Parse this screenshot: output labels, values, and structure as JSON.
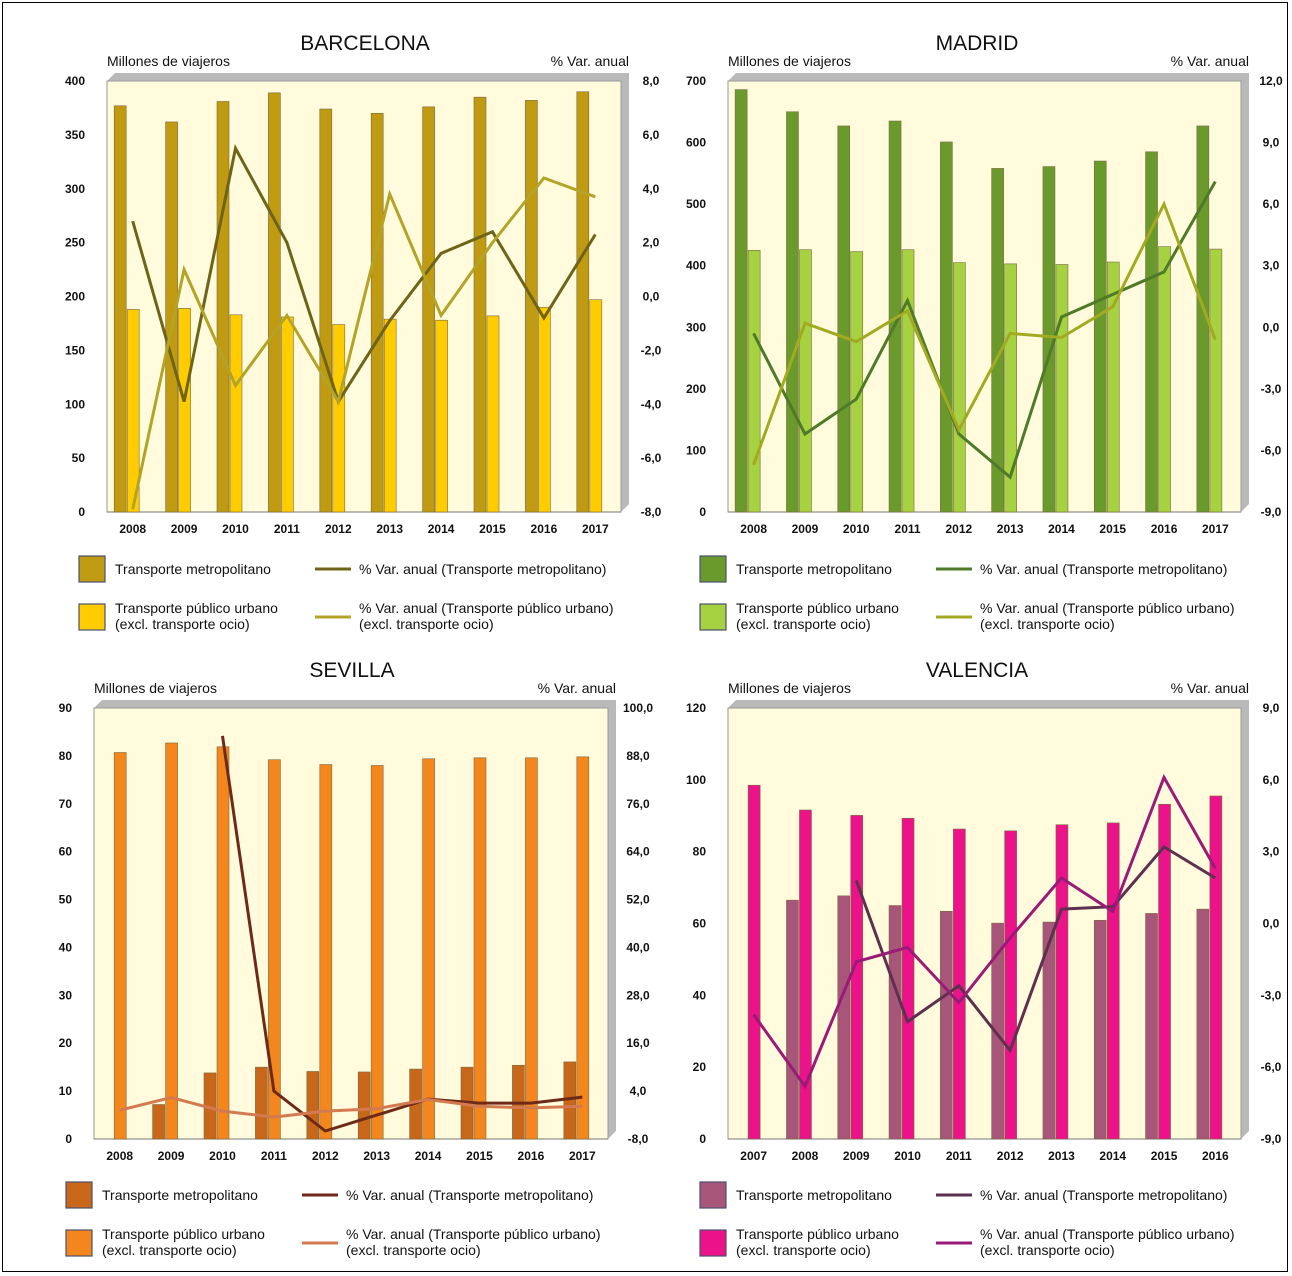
{
  "chart_data": [
    {
      "type": "bar",
      "title": "BARCELONA",
      "ylabel": "Millones de viajeros",
      "y2label": "% Var. anual",
      "categories": [
        "2008",
        "2009",
        "2010",
        "2011",
        "2012",
        "2013",
        "2014",
        "2015",
        "2016",
        "2017"
      ],
      "ylim": [
        0,
        400
      ],
      "yticks": [
        0,
        50,
        100,
        150,
        200,
        250,
        300,
        350,
        400
      ],
      "y2lim": [
        -8,
        8
      ],
      "y2ticks": [
        "-8,0",
        "-6,0",
        "-4,0",
        "-2,0",
        "0,0",
        "2,0",
        "4,0",
        "6,0",
        "8,0"
      ],
      "y2tickvals": [
        -8,
        -6,
        -4,
        -2,
        0,
        2,
        4,
        6,
        8
      ],
      "series": [
        {
          "name": "Transporte metropolitano",
          "kind": "bar",
          "axis": "left",
          "color": "#c09a10",
          "values": [
            377,
            362,
            381,
            389,
            374,
            370,
            376,
            385,
            382,
            390
          ]
        },
        {
          "name": "Transporte público urbano\n(excl. transporte ocio)",
          "kind": "bar",
          "axis": "left",
          "color": "#ffcc00",
          "values": [
            188,
            189,
            183,
            181,
            174,
            179,
            178,
            182,
            190,
            197
          ]
        },
        {
          "name": "% Var. anual (Transporte metropolitano)",
          "kind": "line",
          "axis": "right",
          "color": "#6e6418",
          "values": [
            2.8,
            -3.9,
            5.5,
            2.0,
            -3.9,
            -0.9,
            1.6,
            2.4,
            -0.8,
            2.3
          ]
        },
        {
          "name": "% Var. anual (Transporte público urbano)\n(excl. transporte ocio)",
          "kind": "line",
          "axis": "right",
          "color": "#b3a428",
          "values": [
            -7.9,
            1.0,
            -3.3,
            -0.7,
            -3.9,
            3.8,
            -0.7,
            2.0,
            4.4,
            3.7
          ]
        }
      ]
    },
    {
      "type": "bar",
      "title": "MADRID",
      "ylabel": "Millones de viajeros",
      "y2label": "% Var. anual",
      "categories": [
        "2008",
        "2009",
        "2010",
        "2011",
        "2012",
        "2013",
        "2014",
        "2015",
        "2016",
        "2017"
      ],
      "ylim": [
        0,
        700
      ],
      "yticks": [
        0,
        100,
        200,
        300,
        400,
        500,
        600,
        700
      ],
      "y2lim": [
        -9,
        12
      ],
      "y2ticks": [
        "-9,0",
        "-6,0",
        "-3,0",
        "0,0",
        "3,0",
        "6,0",
        "9,0",
        "12,0"
      ],
      "y2tickvals": [
        -9,
        -6,
        -3,
        0,
        3,
        6,
        9,
        12
      ],
      "series": [
        {
          "name": "Transporte metropolitano",
          "kind": "bar",
          "axis": "left",
          "color": "#6a9a2c",
          "values": [
            686,
            650,
            627,
            635,
            601,
            558,
            561,
            570,
            585,
            627
          ]
        },
        {
          "name": "Transporte público urbano\n(excl. transporte ocio)",
          "kind": "bar",
          "axis": "left",
          "color": "#a6d141",
          "values": [
            425,
            426,
            423,
            426,
            405,
            403,
            402,
            406,
            431,
            427
          ]
        },
        {
          "name": "% Var. anual (Transporte metropolitano)",
          "kind": "line",
          "axis": "right",
          "color": "#4e7a2a",
          "values": [
            -0.3,
            -5.2,
            -3.5,
            1.3,
            -5.2,
            -7.3,
            0.5,
            1.6,
            2.7,
            7.1
          ]
        },
        {
          "name": "% Var. anual (Transporte público urbano)\n(excl. transporte ocio)",
          "kind": "line",
          "axis": "right",
          "color": "#a3aa22",
          "values": [
            -6.7,
            0.2,
            -0.7,
            0.8,
            -5.0,
            -0.3,
            -0.5,
            1.0,
            6.0,
            -0.6
          ]
        }
      ]
    },
    {
      "type": "bar",
      "title": "SEVILLA",
      "ylabel": "Millones de viajeros",
      "y2label": "% Var. anual",
      "categories": [
        "2008",
        "2009",
        "2010",
        "2011",
        "2012",
        "2013",
        "2014",
        "2015",
        "2016",
        "2017"
      ],
      "ylim": [
        0,
        90
      ],
      "yticks": [
        0,
        10,
        20,
        30,
        40,
        50,
        60,
        70,
        80,
        90
      ],
      "y2lim": [
        -8,
        100
      ],
      "y2ticks": [
        "-8,0",
        "4,0",
        "16,0",
        "28,0",
        "40,0",
        "52,0",
        "64,0",
        "76,0",
        "88,0",
        "100,0"
      ],
      "y2tickvals": [
        -8,
        4,
        16,
        28,
        40,
        52,
        64,
        76,
        88,
        100
      ],
      "series": [
        {
          "name": "Transporte metropolitano",
          "kind": "bar",
          "axis": "left",
          "color": "#c8661a",
          "values": [
            null,
            7.2,
            13.8,
            15.0,
            14.1,
            14.0,
            14.6,
            15.0,
            15.4,
            16.1
          ]
        },
        {
          "name": "Transporte público urbano\n(excl. transporte ocio)",
          "kind": "bar",
          "axis": "left",
          "color": "#f4861e",
          "values": [
            80.7,
            82.7,
            81.9,
            79.2,
            78.2,
            78.0,
            79.4,
            79.6,
            79.6,
            79.8
          ]
        },
        {
          "name": "% Var. anual (Transporte metropolitano)",
          "kind": "line",
          "axis": "right",
          "color": "#6e2a18",
          "values": [
            null,
            null,
            93.0,
            4.0,
            -6.0,
            -2.0,
            2.0,
            1.0,
            1.0,
            2.5
          ]
        },
        {
          "name": "% Var. anual (Transporte público urbano)\n(excl. transporte ocio)",
          "kind": "line",
          "axis": "right",
          "color": "#d47a50",
          "values": [
            -0.8,
            2.4,
            -1.0,
            -2.5,
            -1.0,
            -0.4,
            1.9,
            0.2,
            -0.2,
            0.2
          ]
        }
      ]
    },
    {
      "type": "bar",
      "title": "VALENCIA",
      "ylabel": "Millones de viajeros",
      "y2label": "% Var. anual",
      "categories": [
        "2007",
        "2008",
        "2009",
        "2010",
        "2011",
        "2012",
        "2013",
        "2014",
        "2015",
        "2016"
      ],
      "ylim": [
        0,
        120
      ],
      "yticks": [
        0,
        20,
        40,
        60,
        80,
        100,
        120
      ],
      "y2lim": [
        -9,
        9
      ],
      "y2ticks": [
        "-9,0",
        "-6,0",
        "-3,0",
        "0,0",
        "3,0",
        "6,0",
        "9,0"
      ],
      "y2tickvals": [
        -9,
        -6,
        -3,
        0,
        3,
        6,
        9
      ],
      "series": [
        {
          "name": "Transporte metropolitano",
          "kind": "bar",
          "axis": "left",
          "color": "#a8557a",
          "values": [
            null,
            66.5,
            67.7,
            65.0,
            63.4,
            60.1,
            60.4,
            60.9,
            62.8,
            64.0
          ]
        },
        {
          "name": "Transporte público urbano\n(excl. transporte ocio)",
          "kind": "bar",
          "axis": "left",
          "color": "#ec138a",
          "values": [
            98.5,
            91.6,
            90.1,
            89.3,
            86.3,
            85.8,
            87.5,
            88.0,
            93.2,
            95.5
          ]
        },
        {
          "name": "% Var. anual (Transporte metropolitano)",
          "kind": "line",
          "axis": "right",
          "color": "#5e3050",
          "values": [
            null,
            null,
            1.8,
            -4.1,
            -2.6,
            -5.3,
            0.6,
            0.7,
            3.2,
            1.9
          ]
        },
        {
          "name": "% Var. anual (Transporte público urbano)\n(excl. transporte ocio)",
          "kind": "line",
          "axis": "right",
          "color": "#9a1a78",
          "values": [
            -3.8,
            -6.8,
            -1.6,
            -1.0,
            -3.3,
            -0.6,
            1.9,
            0.5,
            6.1,
            2.3
          ]
        }
      ]
    }
  ]
}
